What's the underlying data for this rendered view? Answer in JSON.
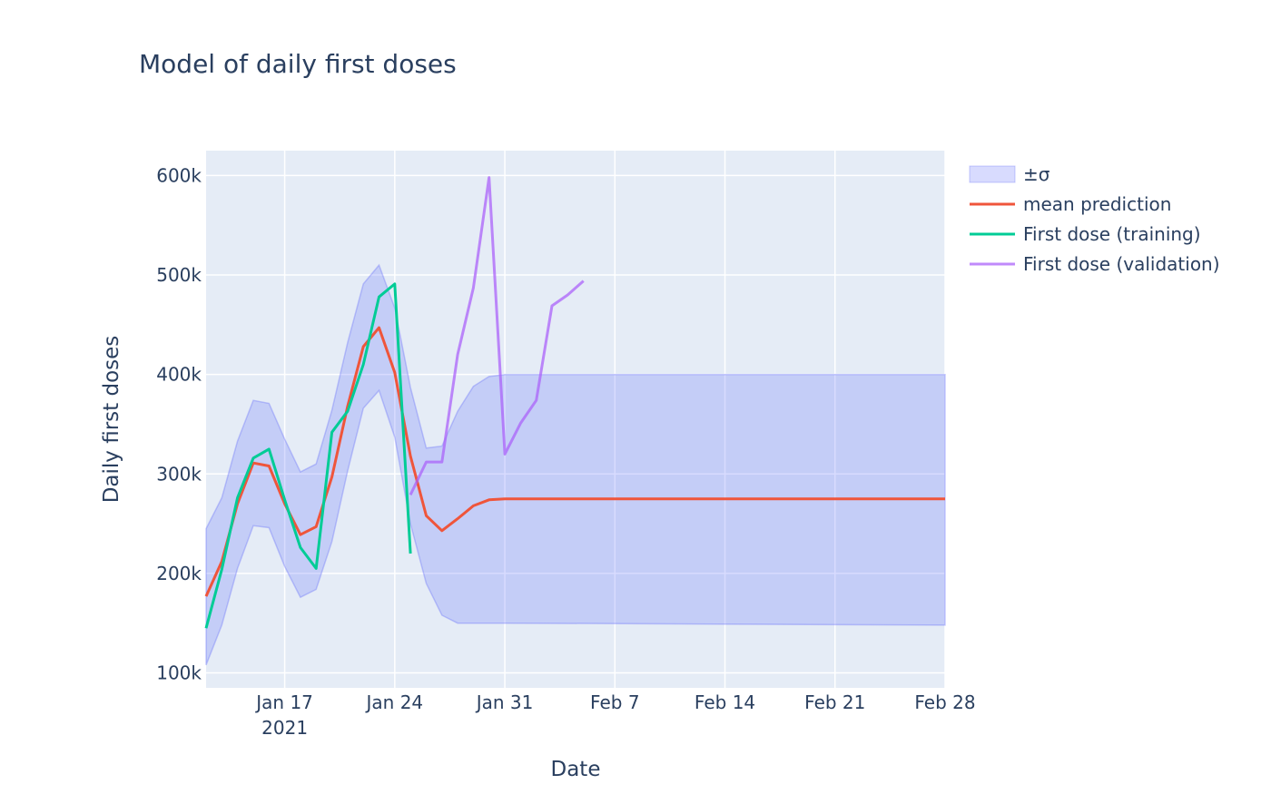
{
  "chart_data": {
    "type": "line",
    "title": "Model of daily first doses",
    "xlabel": "Date",
    "ylabel": "Daily first doses",
    "x_start": "2021-01-12",
    "x_range": [
      "2021-01-12",
      "2021-02-28"
    ],
    "ylim": [
      85000,
      625000
    ],
    "grid": true,
    "legend_position": "top-right",
    "x_ticks": [
      {
        "date": "2021-01-17",
        "label": "Jan 17",
        "sublabel": "2021"
      },
      {
        "date": "2021-01-24",
        "label": "Jan 24",
        "sublabel": ""
      },
      {
        "date": "2021-01-31",
        "label": "Jan 31",
        "sublabel": ""
      },
      {
        "date": "2021-02-07",
        "label": "Feb 7",
        "sublabel": ""
      },
      {
        "date": "2021-02-14",
        "label": "Feb 14",
        "sublabel": ""
      },
      {
        "date": "2021-02-21",
        "label": "Feb 21",
        "sublabel": ""
      },
      {
        "date": "2021-02-28",
        "label": "Feb 28",
        "sublabel": ""
      }
    ],
    "y_ticks": [
      {
        "value": 100000,
        "label": "100k"
      },
      {
        "value": 200000,
        "label": "200k"
      },
      {
        "value": 300000,
        "label": "300k"
      },
      {
        "value": 400000,
        "label": "400k"
      },
      {
        "value": 500000,
        "label": "500k"
      },
      {
        "value": 600000,
        "label": "600k"
      }
    ],
    "band": {
      "name": "±σ",
      "color": "#636efa",
      "x": [
        "2021-01-12",
        "2021-01-13",
        "2021-01-14",
        "2021-01-15",
        "2021-01-16",
        "2021-01-17",
        "2021-01-18",
        "2021-01-19",
        "2021-01-20",
        "2021-01-21",
        "2021-01-22",
        "2021-01-23",
        "2021-01-24",
        "2021-01-25",
        "2021-01-26",
        "2021-01-27",
        "2021-01-28",
        "2021-01-29",
        "2021-01-30",
        "2021-01-31",
        "2021-02-28"
      ],
      "upper": [
        245000,
        276000,
        333000,
        374000,
        371000,
        335000,
        302000,
        310000,
        364000,
        432000,
        491000,
        510000,
        467000,
        387000,
        326000,
        328000,
        363000,
        388000,
        398000,
        400000,
        400000
      ],
      "lower": [
        108000,
        148000,
        205000,
        248000,
        246000,
        207000,
        176000,
        184000,
        232000,
        303000,
        366000,
        384000,
        337000,
        250000,
        190000,
        158000,
        150000,
        150000,
        150000,
        150000,
        148000
      ]
    },
    "series": [
      {
        "name": "mean prediction",
        "color": "#ef553b",
        "x": [
          "2021-01-12",
          "2021-01-13",
          "2021-01-14",
          "2021-01-15",
          "2021-01-16",
          "2021-01-17",
          "2021-01-18",
          "2021-01-19",
          "2021-01-20",
          "2021-01-21",
          "2021-01-22",
          "2021-01-23",
          "2021-01-24",
          "2021-01-25",
          "2021-01-26",
          "2021-01-27",
          "2021-01-28",
          "2021-01-29",
          "2021-01-30",
          "2021-01-31",
          "2021-02-28"
        ],
        "values": [
          177000,
          212000,
          270000,
          311000,
          308000,
          270000,
          239000,
          247000,
          297000,
          368000,
          428000,
          447000,
          402000,
          318000,
          258000,
          243000,
          255000,
          268000,
          274000,
          275000,
          275000
        ]
      },
      {
        "name": "First dose (training)",
        "color": "#00cc96",
        "x": [
          "2021-01-12",
          "2021-01-13",
          "2021-01-14",
          "2021-01-15",
          "2021-01-16",
          "2021-01-17",
          "2021-01-18",
          "2021-01-19",
          "2021-01-20",
          "2021-01-21",
          "2021-01-22",
          "2021-01-23",
          "2021-01-24",
          "2021-01-25"
        ],
        "values": [
          145000,
          204000,
          276000,
          316000,
          325000,
          274000,
          226000,
          205000,
          342000,
          363000,
          410000,
          478000,
          491000,
          220000
        ]
      },
      {
        "name": "First dose (validation)",
        "color": "#ab63fa",
        "x": [
          "2021-01-25",
          "2021-01-26",
          "2021-01-27",
          "2021-01-28",
          "2021-01-29",
          "2021-01-30",
          "2021-01-31",
          "2021-02-01",
          "2021-02-02",
          "2021-02-03",
          "2021-02-04",
          "2021-02-05"
        ],
        "values": [
          279000,
          312000,
          312000,
          420000,
          487000,
          598000,
          320000,
          351000,
          374000,
          469000,
          480000,
          494000
        ]
      }
    ]
  }
}
